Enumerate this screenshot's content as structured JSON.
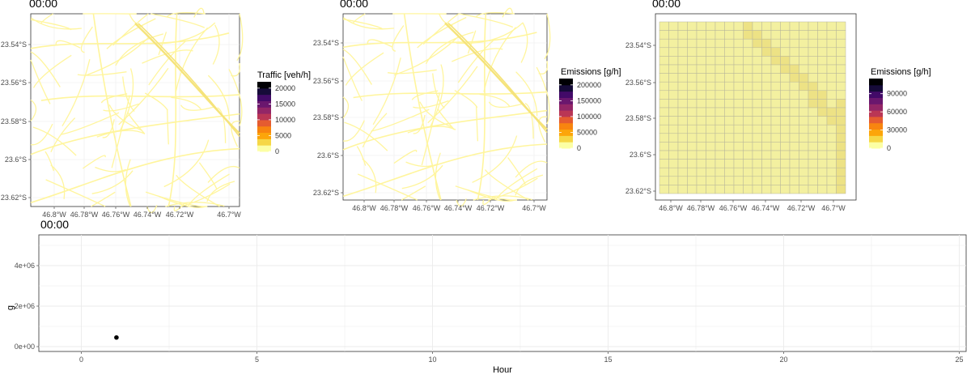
{
  "chart_data": [
    {
      "type": "map",
      "title": "00:00",
      "x_ticks": [
        "46.8°W",
        "46.78°W",
        "46.76°W",
        "46.74°W",
        "46.72°W",
        "46.7°W"
      ],
      "y_ticks": [
        "23.54°S",
        "23.56°S",
        "23.58°S",
        "23.6°S",
        "23.62°S"
      ],
      "legend_title": "Traffic [veh/h]",
      "legend_labels": [
        "20000",
        "15000",
        "10000",
        "5000",
        "0"
      ],
      "legend_max": 22000,
      "legend_values": [
        20000,
        15000,
        10000,
        5000,
        0
      ]
    },
    {
      "type": "map",
      "title": "00:00",
      "x_ticks": [
        "46.8°W",
        "46.78°W",
        "46.76°W",
        "46.74°W",
        "46.72°W",
        "46.7°W"
      ],
      "y_ticks": [
        "23.54°S",
        "23.56°S",
        "23.58°S",
        "23.6°S",
        "23.62°S"
      ],
      "legend_title": "Emissions [g/h]",
      "legend_labels": [
        "200000",
        "150000",
        "100000",
        "50000",
        "0"
      ],
      "legend_max": 220000,
      "legend_values": [
        200000,
        150000,
        100000,
        50000,
        0
      ]
    },
    {
      "type": "heatmap",
      "title": "00:00",
      "x_ticks": [
        "46.8°W",
        "46.78°W",
        "46.76°W",
        "46.74°W",
        "46.72°W",
        "46.7°W"
      ],
      "y_ticks": [
        "23.54°S",
        "23.56°S",
        "23.58°S",
        "23.6°S",
        "23.62°S"
      ],
      "legend_title": "Emissions [g/h]",
      "legend_labels": [
        "90000",
        "60000",
        "30000",
        "0"
      ],
      "legend_max": 115000,
      "legend_values": [
        90000,
        60000,
        30000,
        0
      ]
    },
    {
      "type": "scatter",
      "title": "00:00",
      "xlabel": "Hour",
      "ylabel": "g",
      "xlim": [
        -2.5,
        25
      ],
      "ylim": [
        -200000,
        5500000
      ],
      "x_ticks": [
        0,
        5,
        10,
        15,
        20,
        25
      ],
      "y_ticks": [
        0,
        2000000,
        4000000
      ],
      "y_tick_labels": [
        "0e+00",
        "2e+06",
        "4e+06"
      ],
      "points": [
        {
          "x": 1,
          "y": 450000
        }
      ]
    }
  ],
  "colors": {
    "road": "#fff59d",
    "road_major": "#f5e37a",
    "grid_fill": "#f3f0a0",
    "grid_fill_hi": "#ede285",
    "grid_line": "#b8b69a",
    "panel_grid": "#ebebeb",
    "point": "#000000"
  }
}
